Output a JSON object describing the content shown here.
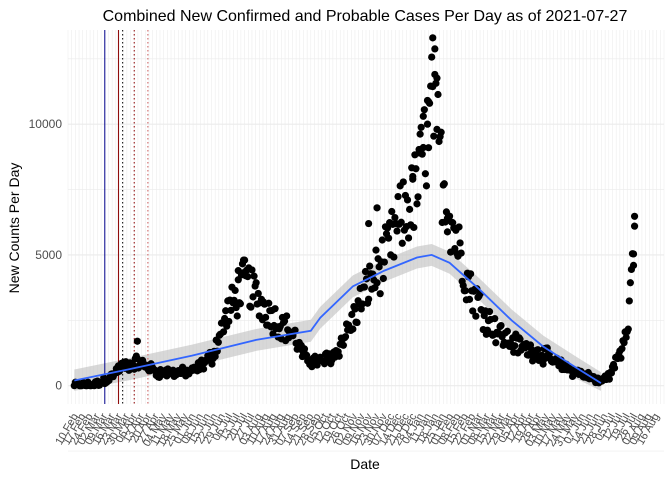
{
  "chart_data": {
    "type": "scatter",
    "title": "Combined New Confirmed and Probable Cases Per Day as of 2021-07-27",
    "xlabel": "Date",
    "ylabel": "New Counts Per Day",
    "ylim": [
      -700,
      13600
    ],
    "y_ticks": [
      0,
      5000,
      10000
    ],
    "y_tick_labels": [
      "0",
      "5000",
      "10000"
    ],
    "x_range": [
      "2020-02-04",
      "2021-08-24"
    ],
    "x_tick_labels": [
      "10 Feb",
      "17 Feb",
      "24 Feb",
      "02 Mar",
      "09 Mar",
      "16 Mar",
      "23 Mar",
      "30 Mar",
      "06 Apr",
      "13 Apr",
      "20 Apr",
      "27 Apr",
      "04 May",
      "11 May",
      "18 May",
      "25 May",
      "01 Jun",
      "08 Jun",
      "15 Jun",
      "22 Jun",
      "29 Jun",
      "06 Jul",
      "13 Jul",
      "20 Jul",
      "27 Jul",
      "03 Aug",
      "10 Aug",
      "17 Aug",
      "24 Aug",
      "31 Aug",
      "07 Sep",
      "14 Sep",
      "21 Sep",
      "28 Sep",
      "05 Oct",
      "12 Oct",
      "19 Oct",
      "26 Oct",
      "02 Nov",
      "09 Nov",
      "16 Nov",
      "23 Nov",
      "30 Nov",
      "07 Dec",
      "14 Dec",
      "21 Dec",
      "28 Dec",
      "04 Jan",
      "11 Jan",
      "18 Jan",
      "25 Jan",
      "01 Feb",
      "08 Feb",
      "15 Feb",
      "22 Feb",
      "01 Mar",
      "08 Mar",
      "15 Mar",
      "22 Mar",
      "29 Mar",
      "05 Apr",
      "12 Apr",
      "19 Apr",
      "26 Apr",
      "03 May",
      "10 May",
      "17 May",
      "24 May",
      "31 May",
      "07 Jun",
      "14 Jun",
      "21 Jun",
      "28 Jun",
      "05 Jul",
      "12 Jul",
      "19 Jul",
      "26 Jul",
      "02 Aug",
      "09 Aug",
      "16 Aug"
    ],
    "vertical_lines": [
      {
        "date": "2020-03-10",
        "color": "#00008b",
        "style": "solid"
      },
      {
        "date": "2020-03-23",
        "color": "#8b0000",
        "style": "solid"
      },
      {
        "date": "2020-03-27",
        "color": "#000000",
        "style": "dotted"
      },
      {
        "date": "2020-04-07",
        "color": "#8b0000",
        "style": "dotted"
      },
      {
        "date": "2020-04-20",
        "color": "#cd5c5c",
        "style": "dotted"
      }
    ],
    "point_color": "#000000",
    "smooth_color": "#3366ff",
    "ribbon_color": "#bebebe",
    "grid": true,
    "background": "#ffffff",
    "gridline_color": "#ebebeb",
    "keypoints": [
      [
        "2020-02-10",
        0
      ],
      [
        "2020-03-01",
        50
      ],
      [
        "2020-03-15",
        300
      ],
      [
        "2020-03-25",
        700
      ],
      [
        "2020-04-10",
        900
      ],
      [
        "2020-05-01",
        500
      ],
      [
        "2020-06-01",
        500
      ],
      [
        "2020-06-20",
        1100
      ],
      [
        "2020-07-05",
        2800
      ],
      [
        "2020-07-22",
        4000
      ],
      [
        "2020-08-05",
        3200
      ],
      [
        "2020-08-20",
        2500
      ],
      [
        "2020-09-05",
        2000
      ],
      [
        "2020-09-15",
        1100
      ],
      [
        "2020-10-01",
        900
      ],
      [
        "2020-10-15",
        1200
      ],
      [
        "2020-11-01",
        2500
      ],
      [
        "2020-11-15",
        3800
      ],
      [
        "2020-12-01",
        4800
      ],
      [
        "2020-12-15",
        6200
      ],
      [
        "2021-01-01",
        7500
      ],
      [
        "2021-01-10",
        9500
      ],
      [
        "2021-01-17",
        11000
      ],
      [
        "2021-01-25",
        8000
      ],
      [
        "2021-02-05",
        6000
      ],
      [
        "2021-02-20",
        3800
      ],
      [
        "2021-03-10",
        2500
      ],
      [
        "2021-03-25",
        1800
      ],
      [
        "2021-04-15",
        1400
      ],
      [
        "2021-05-01",
        1200
      ],
      [
        "2021-05-20",
        700
      ],
      [
        "2021-06-10",
        400
      ],
      [
        "2021-06-25",
        150
      ],
      [
        "2021-07-05",
        500
      ],
      [
        "2021-07-15",
        1500
      ],
      [
        "2021-07-22",
        3000
      ],
      [
        "2021-07-27",
        6100
      ]
    ],
    "highlight_points": [
      [
        "2020-04-10",
        1700
      ],
      [
        "2020-07-20",
        4800
      ],
      [
        "2020-07-15",
        4400
      ],
      [
        "2021-01-11",
        10000
      ],
      [
        "2021-01-16",
        13300
      ],
      [
        "2021-01-18",
        11900
      ],
      [
        "2021-01-20",
        9800
      ],
      [
        "2021-01-07",
        10300
      ],
      [
        "2021-01-12",
        9100
      ],
      [
        "2021-01-03",
        8900
      ],
      [
        "2020-12-28",
        8000
      ],
      [
        "2021-01-30",
        6400
      ],
      [
        "2021-07-26",
        4600
      ],
      [
        "2021-07-27",
        6100
      ],
      [
        "2020-11-16",
        6200
      ],
      [
        "2020-11-24",
        6800
      ]
    ],
    "smooth": [
      [
        "2020-02-10",
        200
      ],
      [
        "2020-04-01",
        620
      ],
      [
        "2020-06-01",
        1150
      ],
      [
        "2020-08-01",
        1750
      ],
      [
        "2020-09-22",
        2100
      ],
      [
        "2020-10-01",
        2600
      ],
      [
        "2020-11-01",
        3800
      ],
      [
        "2020-12-01",
        4400
      ],
      [
        "2021-01-01",
        4900
      ],
      [
        "2021-01-15",
        5000
      ],
      [
        "2021-02-01",
        4700
      ],
      [
        "2021-03-01",
        3700
      ],
      [
        "2021-04-01",
        2500
      ],
      [
        "2021-05-01",
        1500
      ],
      [
        "2021-06-01",
        700
      ],
      [
        "2021-06-25",
        100
      ]
    ]
  }
}
